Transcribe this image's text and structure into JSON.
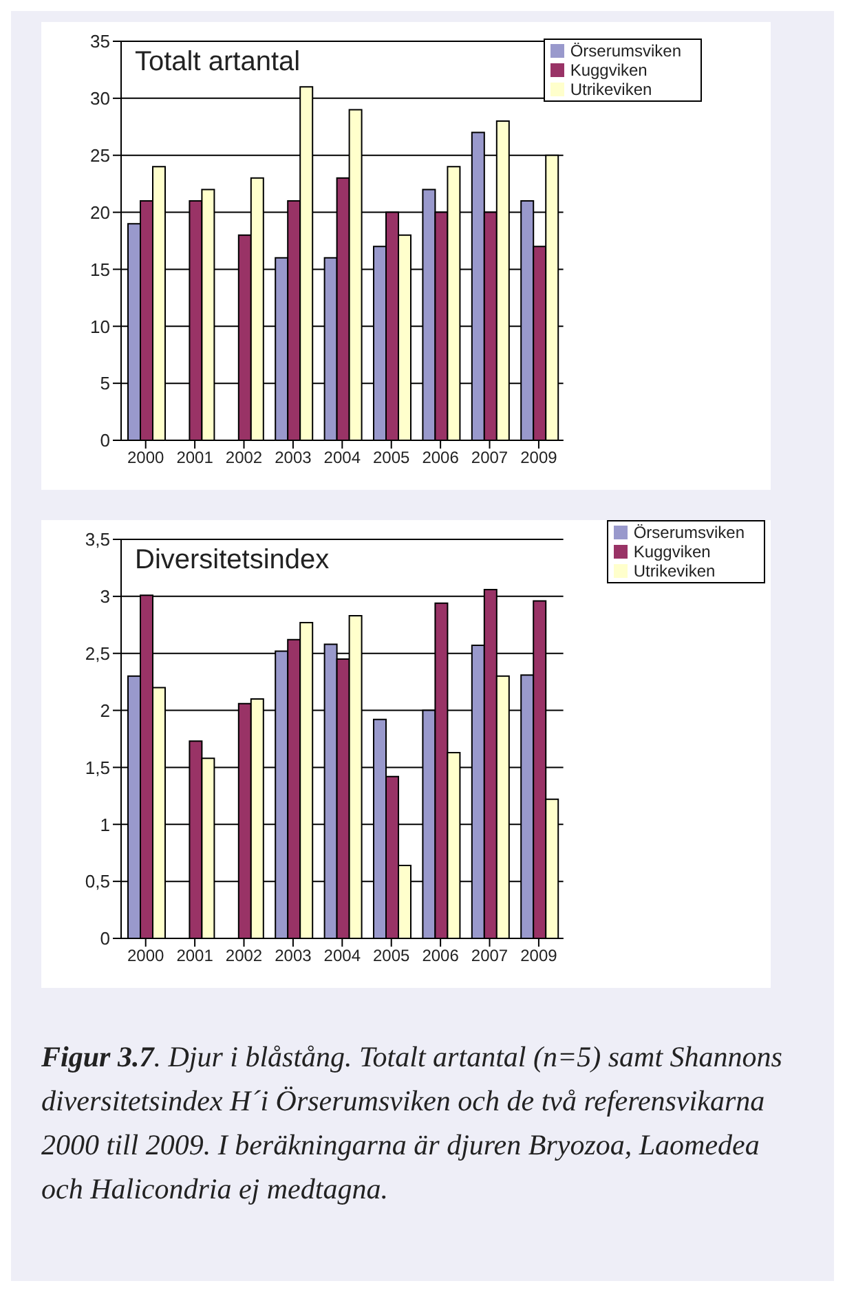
{
  "chart_data": [
    {
      "type": "bar",
      "title": "Totalt artantal",
      "categories": [
        "2000",
        "2001",
        "2002",
        "2003",
        "2004",
        "2005",
        "2006",
        "2007",
        "2009"
      ],
      "series": [
        {
          "name": "Örserumsviken",
          "color": "#9999cc",
          "values": [
            19,
            null,
            null,
            16,
            16,
            17,
            22,
            27,
            21
          ]
        },
        {
          "name": "Kuggviken",
          "color": "#993366",
          "values": [
            21,
            21,
            18,
            21,
            23,
            20,
            20,
            20,
            17
          ]
        },
        {
          "name": "Utrikeviken",
          "color": "#ffffcc",
          "values": [
            24,
            22,
            23,
            31,
            29,
            18,
            24,
            28,
            25
          ]
        }
      ],
      "ylim": [
        0,
        35
      ],
      "yticks": [
        0,
        5,
        10,
        15,
        20,
        25,
        30,
        35
      ],
      "grid": "y",
      "legend": "top right"
    },
    {
      "type": "bar",
      "title": "Diversitetsindex",
      "categories": [
        "2000",
        "2001",
        "2002",
        "2003",
        "2004",
        "2005",
        "2006",
        "2007",
        "2009"
      ],
      "series": [
        {
          "name": "Örserumsviken",
          "color": "#9999cc",
          "values": [
            2.3,
            null,
            null,
            2.52,
            2.58,
            1.92,
            2.0,
            2.57,
            2.31
          ]
        },
        {
          "name": "Kuggviken",
          "color": "#993366",
          "values": [
            3.01,
            1.73,
            2.06,
            2.62,
            2.45,
            1.42,
            2.94,
            3.06,
            2.96
          ]
        },
        {
          "name": "Utrikeviken",
          "color": "#ffffcc",
          "values": [
            2.2,
            1.58,
            2.1,
            2.77,
            2.83,
            0.64,
            1.63,
            2.3,
            1.22
          ]
        }
      ],
      "ylim": [
        0,
        3.5
      ],
      "yticks": [
        0,
        {
          "value": 0.5,
          "label": "0,5"
        },
        1,
        {
          "value": 1.5,
          "label": "1,5"
        },
        2,
        {
          "value": 2.5,
          "label": "2,5"
        },
        3,
        {
          "value": 3.5,
          "label": "3,5"
        }
      ],
      "grid": "y",
      "legend": "top right",
      "annotations": [
        "Figur 3.7. Djur i blåstång. Totalt artantal (n=5) samt Shannons  diversitetsindex H´i Örserumsviken och de två referensvikarna 2000 till 2009. I beräkningarna är djuren Bryozoa, Laomedea och Halicondria ej medtagna."
      ]
    }
  ]
}
